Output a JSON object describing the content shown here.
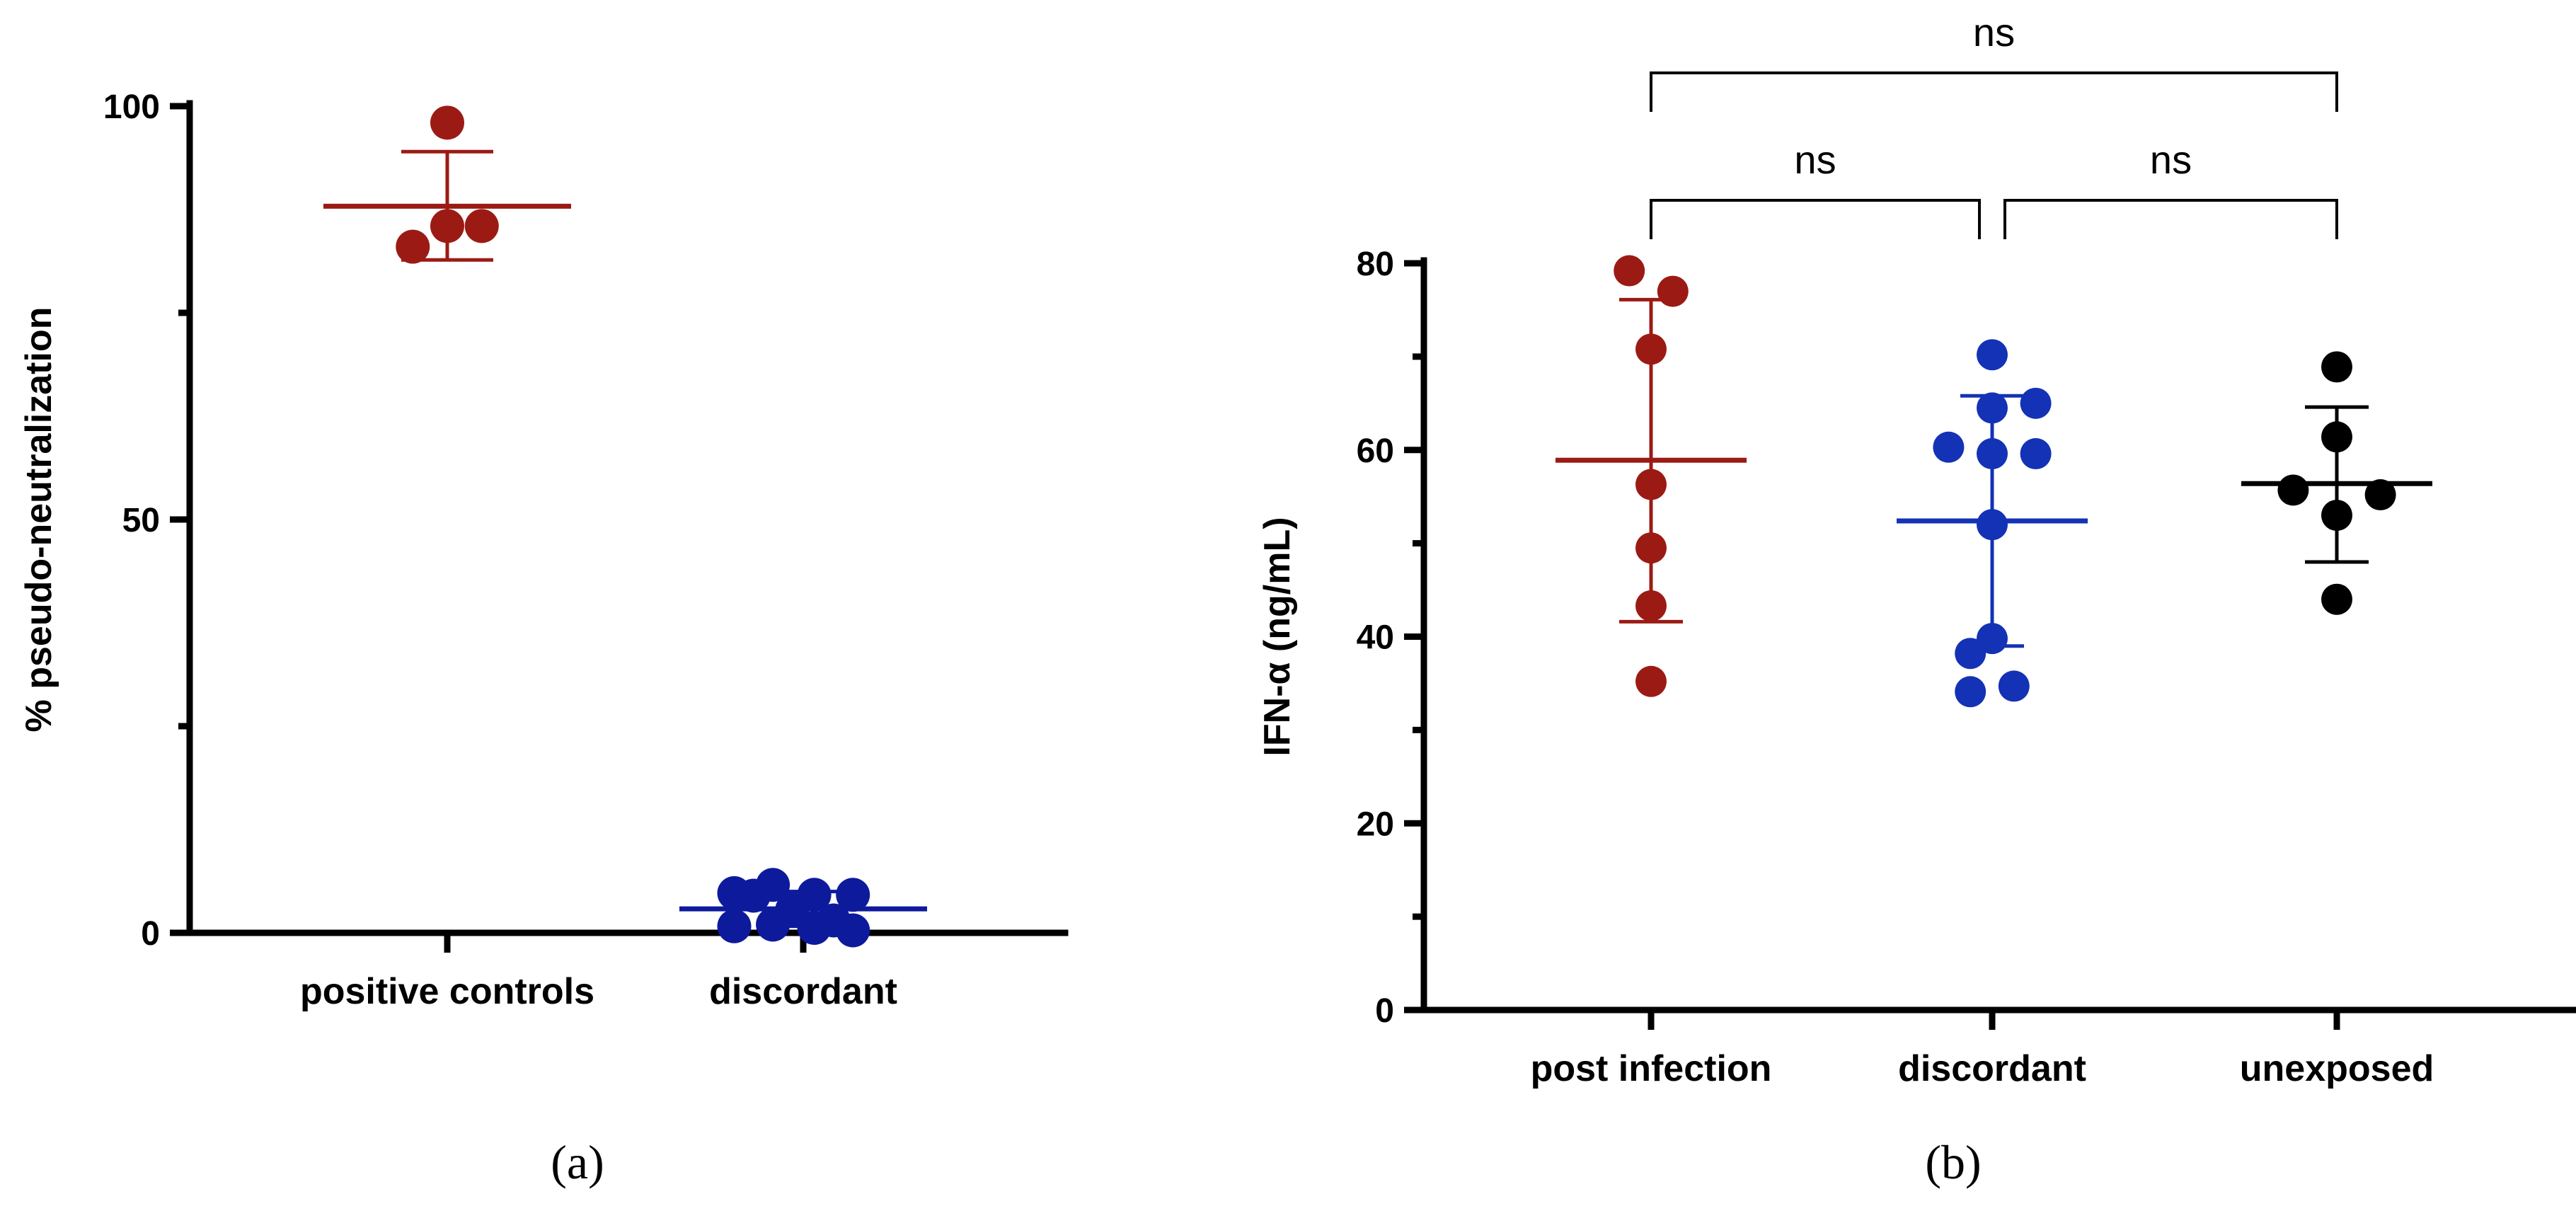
{
  "chart_data": [
    {
      "type": "scatter",
      "panel": "(a)",
      "ylabel": "% pseudo-neutralization",
      "ylim": [
        0,
        100
      ],
      "yticks": [
        0,
        50,
        100
      ],
      "ytick_labels": [
        "0",
        "50",
        "100"
      ],
      "categories": [
        "positive controls",
        "discordant"
      ],
      "series": [
        {
          "name": "positive controls",
          "color": "#9B1B14",
          "points": [
            {
              "dx": -0.25,
              "y": 83
            },
            {
              "dx": 0.0,
              "y": 98
            },
            {
              "dx": 0.0,
              "y": 85.5
            },
            {
              "dx": 0.25,
              "y": 85.5
            }
          ],
          "mean": 87.9,
          "sd_low": 81.4,
          "sd_high": 94.5
        },
        {
          "name": "discordant",
          "color": "#0D1A9C",
          "points": [
            {
              "dx": -0.5,
              "y": 4.8
            },
            {
              "dx": -0.5,
              "y": 0.8
            },
            {
              "dx": -0.36,
              "y": 4.5
            },
            {
              "dx": -0.22,
              "y": 5.8
            },
            {
              "dx": -0.22,
              "y": 1.0
            },
            {
              "dx": -0.08,
              "y": 2.8
            },
            {
              "dx": 0.08,
              "y": 0.6
            },
            {
              "dx": 0.08,
              "y": 4.6
            },
            {
              "dx": 0.22,
              "y": 1.5
            },
            {
              "dx": 0.36,
              "y": 0.3
            },
            {
              "dx": 0.36,
              "y": 4.6
            }
          ],
          "mean": 2.9,
          "sd_low": 0.8,
          "sd_high": 5.0
        }
      ]
    },
    {
      "type": "scatter",
      "panel": "(b)",
      "ylabel": "IFN-α (ng/mL)",
      "ylim": [
        0,
        80
      ],
      "yticks": [
        0,
        20,
        40,
        60,
        80
      ],
      "ytick_labels": [
        "0",
        "20",
        "40",
        "60",
        "80"
      ],
      "categories": [
        "post infection",
        "discordant",
        "unexposed"
      ],
      "series": [
        {
          "name": "post infection",
          "color": "#9B1B14",
          "points": [
            {
              "dx": -0.14,
              "y": 79.2
            },
            {
              "dx": 0.14,
              "y": 77.0
            },
            {
              "dx": 0.0,
              "y": 70.8
            },
            {
              "dx": 0.0,
              "y": 56.3
            },
            {
              "dx": 0.0,
              "y": 49.5
            },
            {
              "dx": 0.0,
              "y": 43.3
            },
            {
              "dx": 0.0,
              "y": 35.2
            }
          ],
          "mean": 58.9,
          "sd_low": 41.6,
          "sd_high": 76.1
        },
        {
          "name": "discordant",
          "color": "#1332B5",
          "points": [
            {
              "dx": 0.0,
              "y": 70.2
            },
            {
              "dx": 0.0,
              "y": 64.5
            },
            {
              "dx": 0.28,
              "y": 65.0
            },
            {
              "dx": -0.28,
              "y": 60.3
            },
            {
              "dx": 0.0,
              "y": 59.6
            },
            {
              "dx": 0.28,
              "y": 59.6
            },
            {
              "dx": 0.0,
              "y": 52.0
            },
            {
              "dx": 0.0,
              "y": 39.8
            },
            {
              "dx": -0.14,
              "y": 38.2
            },
            {
              "dx": -0.14,
              "y": 34.1
            },
            {
              "dx": 0.14,
              "y": 34.7
            }
          ],
          "mean": 52.4,
          "sd_low": 39.0,
          "sd_high": 65.8
        },
        {
          "name": "unexposed",
          "color": "#000000",
          "points": [
            {
              "dx": 0.0,
              "y": 68.9
            },
            {
              "dx": 0.0,
              "y": 61.4
            },
            {
              "dx": -0.28,
              "y": 55.7
            },
            {
              "dx": 0.28,
              "y": 55.2
            },
            {
              "dx": 0.0,
              "y": 53.0
            },
            {
              "dx": 0.0,
              "y": 44.0
            }
          ],
          "mean": 56.4,
          "sd_low": 48.0,
          "sd_high": 64.6
        }
      ],
      "significance": [
        {
          "from": 0,
          "to": 2,
          "label": "ns",
          "level": 2
        },
        {
          "from": 0,
          "to": 1,
          "label": "ns",
          "level": 1
        },
        {
          "from": 1,
          "to": 2,
          "label": "ns",
          "level": 1
        }
      ]
    }
  ]
}
